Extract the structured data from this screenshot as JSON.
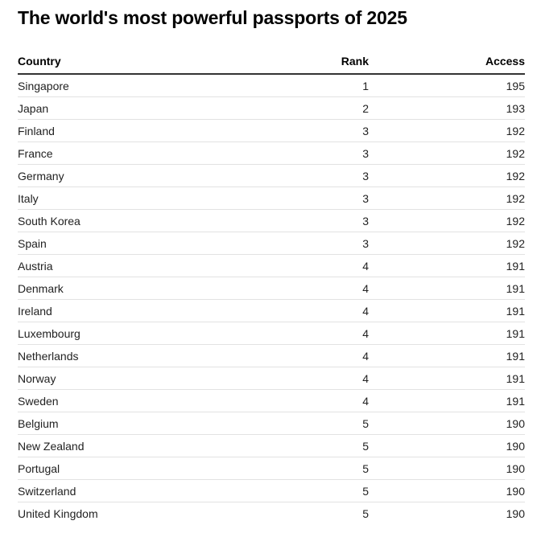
{
  "title": "The world's most powerful passports of 2025",
  "chart_data": {
    "type": "table",
    "title": "The world's most powerful passports of 2025",
    "columns": [
      "Country",
      "Rank",
      "Access"
    ],
    "rows": [
      {
        "country": "Singapore",
        "rank": "1",
        "access": "195"
      },
      {
        "country": "Japan",
        "rank": "2",
        "access": "193"
      },
      {
        "country": "Finland",
        "rank": "3",
        "access": "192"
      },
      {
        "country": "France",
        "rank": "3",
        "access": "192"
      },
      {
        "country": "Germany",
        "rank": "3",
        "access": "192"
      },
      {
        "country": "Italy",
        "rank": "3",
        "access": "192"
      },
      {
        "country": "South Korea",
        "rank": "3",
        "access": "192"
      },
      {
        "country": "Spain",
        "rank": "3",
        "access": "192"
      },
      {
        "country": "Austria",
        "rank": "4",
        "access": "191"
      },
      {
        "country": "Denmark",
        "rank": "4",
        "access": "191"
      },
      {
        "country": "Ireland",
        "rank": "4",
        "access": "191"
      },
      {
        "country": "Luxembourg",
        "rank": "4",
        "access": "191"
      },
      {
        "country": "Netherlands",
        "rank": "4",
        "access": "191"
      },
      {
        "country": "Norway",
        "rank": "4",
        "access": "191"
      },
      {
        "country": "Sweden",
        "rank": "4",
        "access": "191"
      },
      {
        "country": "Belgium",
        "rank": "5",
        "access": "190"
      },
      {
        "country": "New Zealand",
        "rank": "5",
        "access": "190"
      },
      {
        "country": "Portugal",
        "rank": "5",
        "access": "190"
      },
      {
        "country": "Switzerland",
        "rank": "5",
        "access": "190"
      },
      {
        "country": "United Kingdom",
        "rank": "5",
        "access": "190"
      }
    ]
  }
}
